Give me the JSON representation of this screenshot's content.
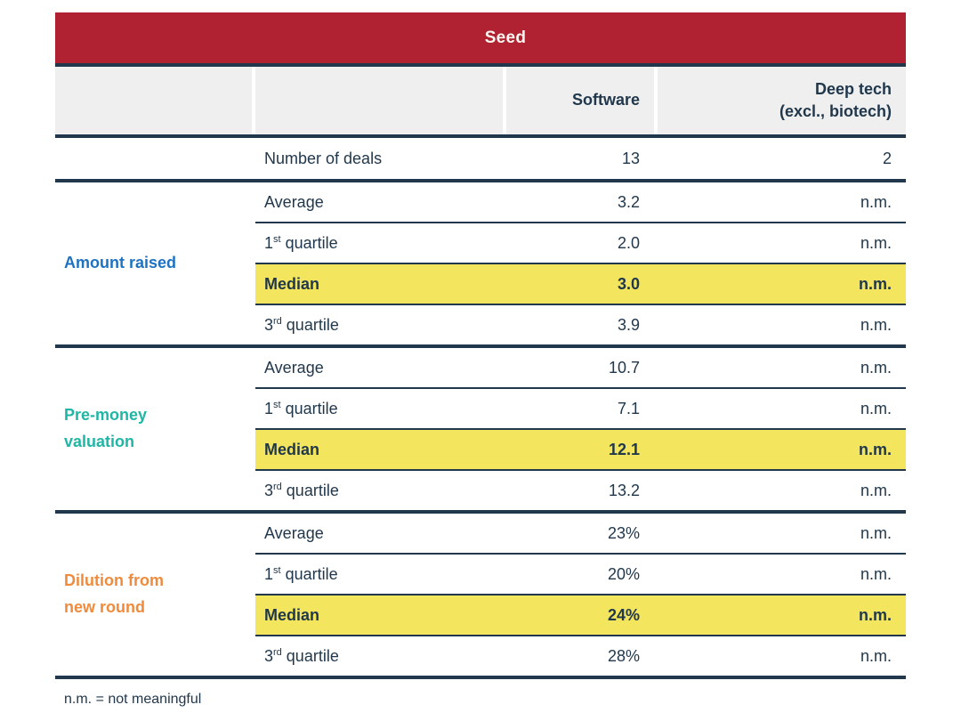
{
  "chart_data": {
    "type": "table",
    "title": "Seed",
    "columns": [
      "",
      "",
      "Software",
      "Deep tech (excl., biotech)"
    ],
    "rows": [
      [
        "",
        "Number of deals",
        "13",
        "2"
      ],
      [
        "Amount raised",
        "Average",
        "3.2",
        "n.m."
      ],
      [
        "Amount raised",
        "1st quartile",
        "2.0",
        "n.m."
      ],
      [
        "Amount raised",
        "Median",
        "3.0",
        "n.m."
      ],
      [
        "Amount raised",
        "3rd quartile",
        "3.9",
        "n.m."
      ],
      [
        "Pre-money valuation",
        "Average",
        "10.7",
        "n.m."
      ],
      [
        "Pre-money valuation",
        "1st quartile",
        "7.1",
        "n.m."
      ],
      [
        "Pre-money valuation",
        "Median",
        "12.1",
        "n.m."
      ],
      [
        "Pre-money valuation",
        "3rd quartile",
        "13.2",
        "n.m."
      ],
      [
        "Dilution from new round",
        "Average",
        "23%",
        "n.m."
      ],
      [
        "Dilution from new round",
        "1st quartile",
        "20%",
        "n.m."
      ],
      [
        "Dilution from new round",
        "Median",
        "24%",
        "n.m."
      ],
      [
        "Dilution from new round",
        "3rd quartile",
        "28%",
        "n.m."
      ]
    ],
    "highlighted_rows": [
      "Median"
    ],
    "footnote": "n.m. = not meaningful",
    "layout_hints": "group labels colored; median rows highlighted yellow; numeric columns right-aligned"
  },
  "colors": {
    "header_red": "#B02132",
    "navy": "#21384C",
    "yellow_highlight": "#F3E65E",
    "header_gray": "#EFEFEF",
    "amount_raised_blue": "#1D72C2",
    "pre_money_teal": "#1FB6A5",
    "dilution_orange": "#EF8B3D",
    "seed_text": "#FAF6F0"
  },
  "title_bar": {
    "label": "Seed"
  },
  "header": {
    "software": "Software",
    "deep_tech": "Deep tech\n(excl., biotech)"
  },
  "deals": {
    "label": "Number of deals",
    "software": "13",
    "deep_tech": "2"
  },
  "groups": [
    {
      "name": "Amount raised",
      "rows": [
        {
          "pre": "Average",
          "sup": "",
          "post": "",
          "software": "3.2",
          "deep_tech": "n.m.",
          "highlight": false
        },
        {
          "pre": "1",
          "sup": "st",
          "post": " quartile",
          "software": "2.0",
          "deep_tech": "n.m.",
          "highlight": false
        },
        {
          "pre": "Median",
          "sup": "",
          "post": "",
          "software": "3.0",
          "deep_tech": "n.m.",
          "highlight": true
        },
        {
          "pre": "3",
          "sup": "rd",
          "post": " quartile",
          "software": "3.9",
          "deep_tech": "n.m.",
          "highlight": false
        }
      ]
    },
    {
      "name": "Pre-money\nvaluation",
      "rows": [
        {
          "pre": "Average",
          "sup": "",
          "post": "",
          "software": "10.7",
          "deep_tech": "n.m.",
          "highlight": false
        },
        {
          "pre": "1",
          "sup": "st",
          "post": " quartile",
          "software": "7.1",
          "deep_tech": "n.m.",
          "highlight": false
        },
        {
          "pre": "Median",
          "sup": "",
          "post": "",
          "software": "12.1",
          "deep_tech": "n.m.",
          "highlight": true
        },
        {
          "pre": "3",
          "sup": "rd",
          "post": " quartile",
          "software": "13.2",
          "deep_tech": "n.m.",
          "highlight": false
        }
      ]
    },
    {
      "name": "Dilution from\nnew round",
      "rows": [
        {
          "pre": "Average",
          "sup": "",
          "post": "",
          "software": "23%",
          "deep_tech": "n.m.",
          "highlight": false
        },
        {
          "pre": "1",
          "sup": "st",
          "post": " quartile",
          "software": "20%",
          "deep_tech": "n.m.",
          "highlight": false
        },
        {
          "pre": "Median",
          "sup": "",
          "post": "",
          "software": "24%",
          "deep_tech": "n.m.",
          "highlight": true
        },
        {
          "pre": "3",
          "sup": "rd",
          "post": " quartile",
          "software": "28%",
          "deep_tech": "n.m.",
          "highlight": false
        }
      ]
    }
  ],
  "footnote": "n.m. = not meaningful"
}
